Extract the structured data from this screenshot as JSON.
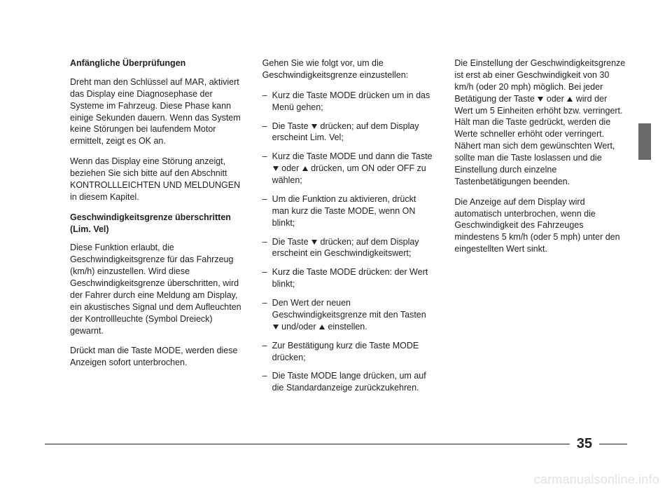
{
  "page_number": "35",
  "watermark": "carmanualsonline.info",
  "col1": {
    "h1": "Anfängliche Überprüfungen",
    "p1": "Dreht man den Schlüssel auf MAR, aktiviert das Display eine Diagnosephase der Systeme im Fahrzeug. Diese Phase kann einige Sekunden dauern. Wenn das System keine Störungen bei laufendem Motor ermittelt, zeigt es OK an.",
    "p2": "Wenn das Display eine Störung anzeigt, beziehen Sie sich bitte auf den Abschnitt KONTROLLLEICHTEN UND MELDUNGEN in diesem Kapitel.",
    "h2": "Geschwindigkeitsgrenze überschritten (Lim. Vel)",
    "p3": "Diese Funktion erlaubt, die Geschwindigkeitsgrenze für das Fahrzeug (km/h) einzustellen. Wird diese Geschwindigkeitsgrenze überschritten, wird der Fahrer durch eine Meldung am Display, ein akustisches Signal und dem Aufleuchten der Kontrollleuchte (Symbol Dreieck) gewarnt.",
    "p4": "Drückt man die Taste MODE, werden diese Anzeigen sofort unterbrochen."
  },
  "col2": {
    "intro": "Gehen Sie wie folgt vor, um die Geschwindigkeitsgrenze einzustellen:",
    "li1": "Kurz die Taste MODE drücken um in das Menü gehen;",
    "li2a": "Die Taste ",
    "li2b": " drücken; auf dem Display erscheint Lim. Vel;",
    "li3a": "Kurz die Taste MODE und dann die Taste ",
    "li3b": " oder ",
    "li3c": " drücken, um ON oder OFF zu wählen;",
    "li4": "Um die Funktion zu aktivieren, drückt man kurz die Taste MODE, wenn ON blinkt;",
    "li5a": "Die Taste ",
    "li5b": " drücken; auf dem Display erscheint ein Geschwindigkeitswert;",
    "li6": "Kurz die Taste MODE drücken: der Wert blinkt;",
    "li7a": "Den Wert der neuen Geschwindigkeitsgrenze mit den Tasten ",
    "li7b": " und/oder ",
    "li7c": " einstellen.",
    "li8": "Zur Bestätigung kurz die Taste MODE drücken;",
    "li9": "Die Taste MODE lange drücken, um auf die Standardanzeige zurückzukehren."
  },
  "col3": {
    "p1a": "Die Einstellung der Geschwindigkeitsgrenze ist erst ab einer Geschwindigkeit von 30 km/h (oder 20 mph) möglich. Bei jeder Betätigung der Taste ",
    "p1b": " oder ",
    "p1c": " wird der Wert um 5 Einheiten erhöht bzw. verringert. Hält man die Taste gedrückt, werden die Werte schneller erhöht oder verringert. Nähert man sich dem gewünschten Wert, sollte man die Taste loslassen und die Einstellung durch einzelne Tastenbetätigungen beenden.",
    "p2": "Die Anzeige auf dem Display wird automatisch unterbrochen, wenn die Geschwindigkeit des Fahrzeuges mindestens 5 km/h (oder 5 mph) unter den eingestellten Wert sinkt."
  }
}
